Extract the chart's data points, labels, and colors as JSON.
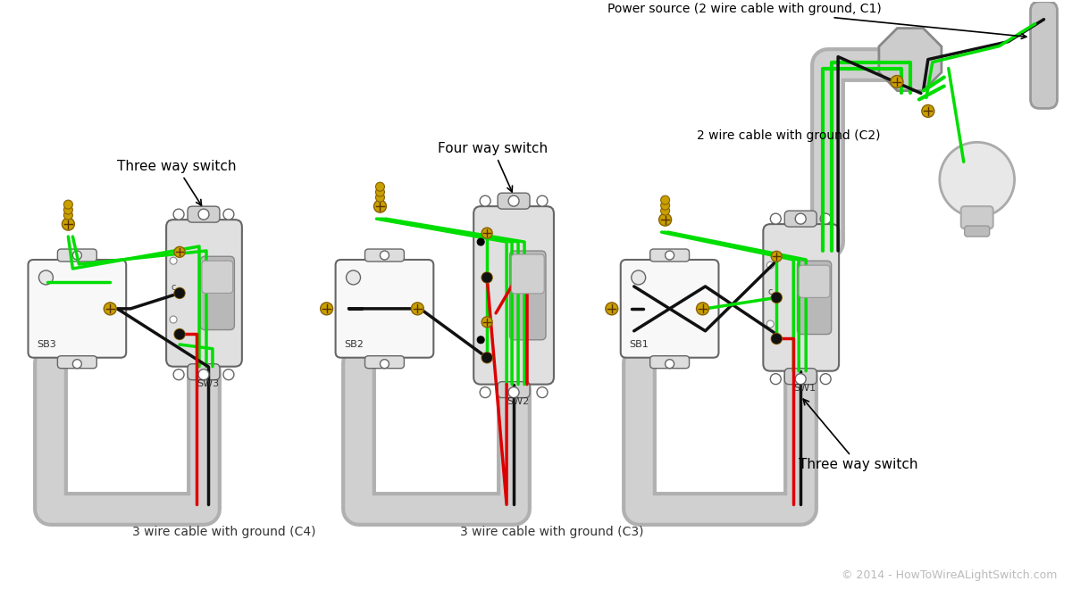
{
  "bg_color": "#ffffff",
  "box_color": "#f0f0f0",
  "box_edge": "#444444",
  "conduit_color": "#d0d0d0",
  "conduit_edge": "#b0b0b0",
  "wire_green": "#00dd00",
  "wire_black": "#111111",
  "wire_red": "#dd0000",
  "gold_color": "#c8a000",
  "labels": {
    "sw1": "SW1",
    "sw2": "SW2",
    "sw3": "SW3",
    "sb1": "SB1",
    "sb2": "SB2",
    "sb3": "SB3",
    "three_way_left": "Three way switch",
    "four_way": "Four way switch",
    "three_way_right": "Three way switch",
    "cable_c3": "3 wire cable with ground (C3)",
    "cable_c4": "3 wire cable with ground (C4)",
    "power_source": "Power source (2 wire cable with ground, C1)",
    "cable_c2": "2 wire cable with ground (C2)",
    "copyright": "© 2014 - HowToWireALightSwitch.com"
  }
}
